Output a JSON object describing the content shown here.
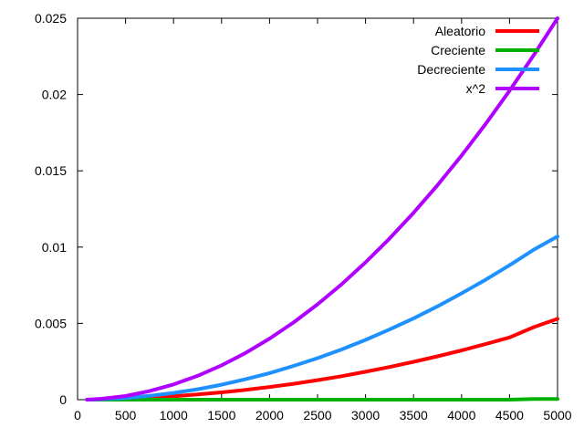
{
  "chart_data": {
    "type": "line",
    "title": "",
    "xlabel": "",
    "ylabel": "",
    "xlim": [
      0,
      5000
    ],
    "ylim": [
      0,
      0.025
    ],
    "grid": false,
    "legend_position": "top-right",
    "x_ticks": [
      "0",
      "500",
      "1000",
      "1500",
      "2000",
      "2500",
      "3000",
      "3500",
      "4000",
      "4500",
      "5000"
    ],
    "y_ticks": [
      "0",
      "0.005",
      "0.01",
      "0.015",
      "0.02",
      "0.025"
    ],
    "x_tick_values": [
      0,
      500,
      1000,
      1500,
      2000,
      2500,
      3000,
      3500,
      4000,
      4500,
      5000
    ],
    "y_tick_values": [
      0,
      0.005,
      0.01,
      0.015,
      0.02,
      0.025
    ],
    "x": [
      100,
      250,
      500,
      750,
      1000,
      1250,
      1500,
      1750,
      2000,
      2250,
      2500,
      2750,
      3000,
      3250,
      3500,
      3750,
      4000,
      4250,
      4500,
      4750,
      5000
    ],
    "series": [
      {
        "name": "Aleatorio",
        "color": "#ff0000",
        "values": [
          0.0,
          2e-05,
          6e-05,
          0.00013,
          0.00022,
          0.00034,
          0.00048,
          0.00064,
          0.00083,
          0.00104,
          0.00128,
          0.00154,
          0.00183,
          0.00214,
          0.00248,
          0.00284,
          0.00323,
          0.00364,
          0.00408,
          0.00475,
          0.0053
        ]
      },
      {
        "name": "Creciente",
        "color": "#00b000",
        "values": [
          0.0,
          0.0,
          0.0,
          0.0,
          0.0,
          0.0,
          0.0,
          0.0,
          0.0,
          0.0,
          0.0,
          0.0,
          0.0,
          0.0,
          0.0,
          0.0,
          0.0,
          0.0,
          0.0,
          5e-05,
          5e-05
        ]
      },
      {
        "name": "Decreciente",
        "color": "#1e90ff",
        "values": [
          0.0,
          3e-05,
          0.00011,
          0.00025,
          0.00044,
          0.00068,
          0.00098,
          0.00134,
          0.00174,
          0.00221,
          0.00272,
          0.00329,
          0.00392,
          0.0046,
          0.00533,
          0.00612,
          0.00697,
          0.00786,
          0.00881,
          0.00982,
          0.0107
        ]
      },
      {
        "name": "x^2",
        "color": "#b000ff",
        "values": [
          0.0,
          6e-05,
          0.00024,
          0.00056,
          0.001,
          0.00156,
          0.00225,
          0.00306,
          0.004,
          0.00506,
          0.00625,
          0.00756,
          0.009,
          0.01056,
          0.01225,
          0.01406,
          0.016,
          0.01806,
          0.02025,
          0.02256,
          0.025
        ]
      }
    ]
  }
}
